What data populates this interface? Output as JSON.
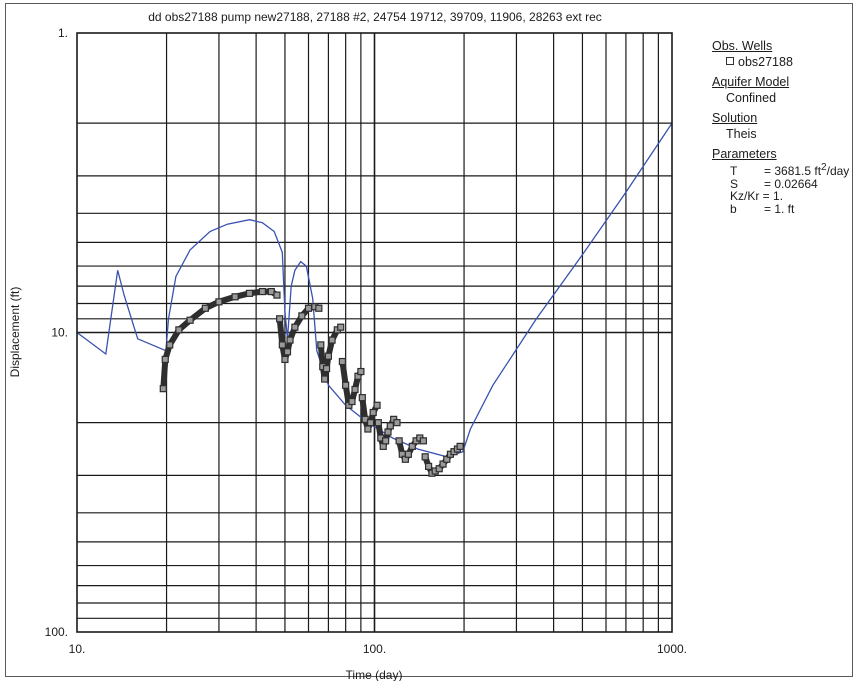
{
  "chart_data": {
    "type": "line",
    "title": "dd obs27188 pump new27188, 27188 #2, 24754 19712, 39709, 11906, 28263 ext rec",
    "xlabel": "Time (day)",
    "ylabel": "Displacement (ft)",
    "x_scale": "log",
    "y_scale": "log",
    "y_inverted": true,
    "xlim": [
      10,
      1000
    ],
    "ylim": [
      1,
      100
    ],
    "x_tick_labels": [
      "10.",
      "100.",
      "1000."
    ],
    "y_tick_labels": [
      "1.",
      "10.",
      "100."
    ],
    "grid": true,
    "series": [
      {
        "name": "obs27188",
        "kind": "observed",
        "marker": "square",
        "segments": [
          [
            [
              19.5,
              15.4
            ],
            [
              19.8,
              12.3
            ],
            [
              20.5,
              11.0
            ],
            [
              22,
              9.8
            ],
            [
              24,
              9.1
            ],
            [
              27,
              8.3
            ],
            [
              30,
              7.9
            ],
            [
              34,
              7.6
            ],
            [
              38,
              7.4
            ],
            [
              42,
              7.3
            ],
            [
              45,
              7.3
            ],
            [
              47,
              7.5
            ]
          ],
          [
            [
              48,
              9.0
            ],
            [
              49,
              11.0
            ],
            [
              50,
              12.3
            ],
            [
              51,
              11.6
            ],
            [
              52,
              10.6
            ],
            [
              54,
              9.6
            ],
            [
              57,
              8.8
            ],
            [
              60,
              8.3
            ],
            [
              63,
              8.2
            ],
            [
              65,
              8.3
            ]
          ],
          [
            [
              66,
              11.0
            ],
            [
              67,
              13.0
            ],
            [
              68,
              14.3
            ],
            [
              69,
              13.2
            ],
            [
              70,
              12.0
            ],
            [
              72,
              10.6
            ],
            [
              75,
              9.8
            ],
            [
              77,
              9.6
            ]
          ],
          [
            [
              78,
              12.5
            ],
            [
              80,
              15.0
            ],
            [
              82,
              17.5
            ],
            [
              84,
              17.0
            ],
            [
              86,
              15.5
            ],
            [
              88,
              14.0
            ],
            [
              90,
              13.5
            ]
          ],
          [
            [
              91,
              16.5
            ],
            [
              93,
              19.5
            ],
            [
              95,
              21.0
            ],
            [
              97,
              20.0
            ],
            [
              99,
              18.5
            ],
            [
              102,
              17.5
            ]
          ],
          [
            [
              103,
              20.0
            ],
            [
              105,
              22.5
            ],
            [
              107,
              24.0
            ],
            [
              109,
              23.0
            ],
            [
              111,
              21.5
            ],
            [
              113,
              20.5
            ],
            [
              116,
              19.5
            ],
            [
              119,
              20.0
            ]
          ],
          [
            [
              121,
              23.0
            ],
            [
              124,
              25.5
            ],
            [
              127,
              26.5
            ],
            [
              130,
              25.5
            ],
            [
              134,
              24.0
            ],
            [
              138,
              23.0
            ],
            [
              142,
              22.5
            ],
            [
              146,
              23.0
            ]
          ],
          [
            [
              148,
              26.0
            ],
            [
              152,
              28.0
            ],
            [
              156,
              29.5
            ],
            [
              160,
              29.0
            ],
            [
              165,
              28.5
            ],
            [
              170,
              27.5
            ],
            [
              175,
              26.5
            ],
            [
              180,
              25.5
            ],
            [
              185,
              25.0
            ],
            [
              190,
              24.5
            ],
            [
              194,
              24.0
            ]
          ]
        ]
      },
      {
        "name": "",
        "kind": "theis model",
        "points": [
          [
            10,
            10
          ],
          [
            12.5,
            11.8
          ],
          [
            13.7,
            6.2
          ],
          [
            14.4,
            7.5
          ],
          [
            16,
            10.5
          ],
          [
            19.9,
            11.5
          ],
          [
            20.3,
            9
          ],
          [
            21.5,
            6.5
          ],
          [
            24,
            5.3
          ],
          [
            28,
            4.6
          ],
          [
            32,
            4.35
          ],
          [
            38,
            4.2
          ],
          [
            42,
            4.3
          ],
          [
            46,
            4.6
          ],
          [
            49,
            5.4
          ],
          [
            50,
            8.5
          ],
          [
            51,
            10.5
          ],
          [
            52.5,
            7.0
          ],
          [
            54,
            6.2
          ],
          [
            56.5,
            5.8
          ],
          [
            59,
            6.0
          ],
          [
            62,
            7.7
          ],
          [
            64,
            11.5
          ],
          [
            70,
            15
          ],
          [
            80,
            17.5
          ],
          [
            95,
            20
          ],
          [
            115,
            22.5
          ],
          [
            140,
            24.5
          ],
          [
            175,
            26
          ],
          [
            198,
            25
          ],
          [
            210,
            21
          ],
          [
            250,
            15
          ],
          [
            350,
            9
          ],
          [
            500,
            5.5
          ],
          [
            700,
            3.4
          ],
          [
            1000,
            2.0
          ]
        ]
      }
    ]
  },
  "legend": {
    "obs_wells_heading": "Obs. Wells",
    "well_name": "obs27188",
    "aquifer_heading": "Aquifer Model",
    "aquifer_value": "Confined",
    "solution_heading": "Solution",
    "solution_value": "Theis",
    "parameters_heading": "Parameters",
    "T_name": "T",
    "T_value": "= 3681.5 ft",
    "T_exp": "2",
    "T_unit": "/day",
    "S_name": "S",
    "S_value": "= 0.02664",
    "Kz_text": "Kz/Kr = 1.",
    "b_name": "b",
    "b_value": "= 1. ft"
  },
  "colors": {
    "model_line": "#3a52b0",
    "markers": "#2e2e2e",
    "grid": "#1a1a1a"
  }
}
